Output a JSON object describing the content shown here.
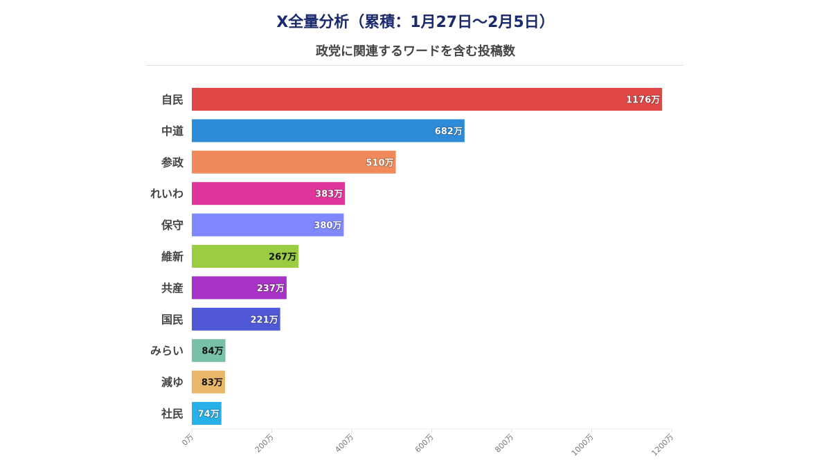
{
  "chart_data": {
    "type": "bar",
    "orientation": "horizontal",
    "title": "X全量分析（累積：1月27日〜2月5日）",
    "subtitle": "政党に関連するワードを含む投稿数",
    "categories": [
      "自民",
      "中道",
      "参政",
      "れいわ",
      "保守",
      "維新",
      "共産",
      "国民",
      "みらい",
      "減ゆ",
      "社民"
    ],
    "values": [
      1176,
      682,
      510,
      383,
      380,
      267,
      237,
      221,
      84,
      83,
      74
    ],
    "data_labels": [
      "1176万",
      "682万",
      "510万",
      "383万",
      "380万",
      "267万",
      "237万",
      "221万",
      "84万",
      "83万",
      "74万"
    ],
    "colors": [
      "#e04848",
      "#2e8bd8",
      "#f08a5a",
      "#e0359a",
      "#8088ff",
      "#9acc44",
      "#a832c8",
      "#5058d8",
      "#78c0a8",
      "#e8b868",
      "#28b0e8"
    ],
    "label_colors": [
      "#fff",
      "#fff",
      "#fff",
      "#fff",
      "#fff",
      "#111",
      "#fff",
      "#fff",
      "#111",
      "#111",
      "#fff"
    ],
    "xlim": [
      0,
      1200
    ],
    "xticks": [
      0,
      200,
      400,
      600,
      800,
      1000,
      1200
    ],
    "xtick_labels": [
      "0万",
      "200万",
      "400万",
      "600万",
      "800万",
      "1000万",
      "1200万"
    ],
    "xlabel": "",
    "ylabel": "",
    "grid": false,
    "legend": "none"
  }
}
